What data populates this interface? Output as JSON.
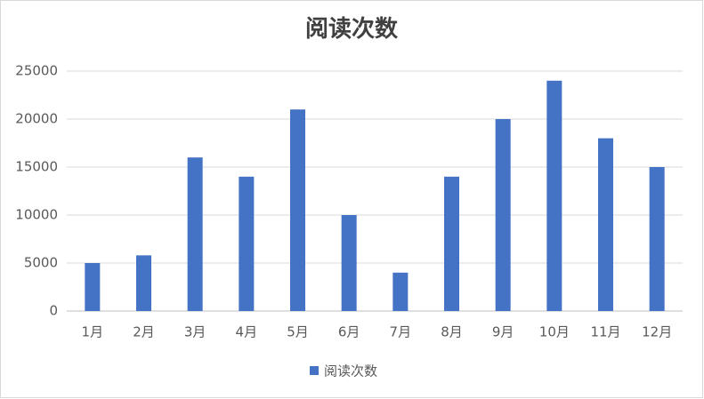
{
  "chart_data": {
    "type": "bar",
    "title": "阅读次数",
    "categories": [
      "1月",
      "2月",
      "3月",
      "4月",
      "5月",
      "6月",
      "7月",
      "8月",
      "9月",
      "10月",
      "11月",
      "12月"
    ],
    "series": [
      {
        "name": "阅读次数",
        "color": "#4472c4",
        "values": [
          5000,
          5800,
          16000,
          14000,
          21000,
          10000,
          4000,
          14000,
          20000,
          24000,
          18000,
          15000
        ]
      }
    ],
    "ylim": [
      0,
      25000
    ],
    "yticks": [
      0,
      5000,
      10000,
      15000,
      20000,
      25000
    ],
    "grid": true,
    "legend": "bottom"
  }
}
